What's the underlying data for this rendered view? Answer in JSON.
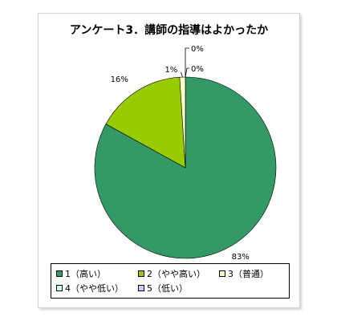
{
  "chart_data": {
    "type": "pie",
    "title": "アンケート3．講師の指導はよかったか",
    "categories": [
      "1（高い）",
      "2（やや高い）",
      "3（普通）",
      "4（やや低い）",
      "5（低い）"
    ],
    "values": [
      83,
      16,
      1,
      0,
      0
    ],
    "value_labels": [
      "83%",
      "16%",
      "1%",
      "0%",
      "0%"
    ],
    "colors": [
      "#339966",
      "#99cc00",
      "#ffffcc",
      "#ccffff",
      "#ccccff"
    ],
    "legend": "bottom",
    "start_angle_deg": 0,
    "direction": "clockwise"
  }
}
